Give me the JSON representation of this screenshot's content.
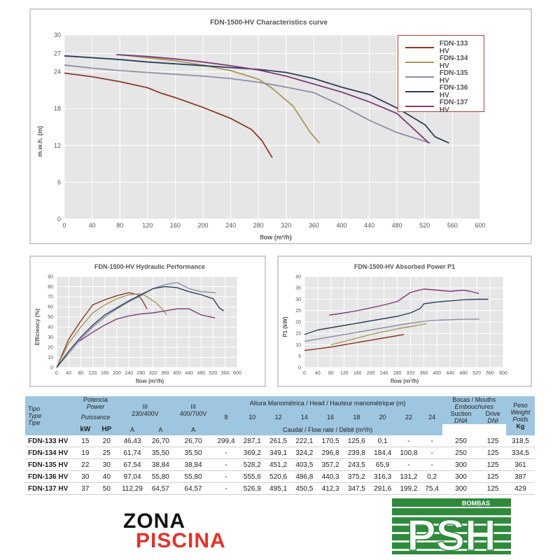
{
  "main_chart": {
    "title": "FDN-1500-HV Characteristics curve",
    "ylabel": "m.w.h. (m)",
    "xlabel": "flow (m³/h)",
    "x_ticks": [
      "0",
      "40",
      "80",
      "120",
      "160",
      "200",
      "240",
      "280",
      "320",
      "360",
      "400",
      "440",
      "480",
      "520",
      "560",
      "600"
    ],
    "y_ticks": [
      "0",
      "6",
      "12",
      "18",
      "24",
      "27",
      "30"
    ]
  },
  "legend": [
    "FDN-133 HV",
    "FDN-134 HV",
    "FDN-135 HV",
    "FDN-136 HV",
    "FDN-137 HV"
  ],
  "colors": {
    "FDN-133 HV": "#8a3a2a",
    "FDN-134 HV": "#a8975a",
    "FDN-135 HV": "#8c8ea6",
    "FDN-136 HV": "#2c3e5c",
    "FDN-137 HV": "#7e3b78"
  },
  "hydraulic_chart": {
    "title": "FDN-1500-HV Hydraulic Performance",
    "ylabel": "Efficiency (%)",
    "xlabel": "flow (m³/h)",
    "x_ticks": [
      "0",
      "40",
      "80",
      "120",
      "160",
      "200",
      "240",
      "280",
      "320",
      "360",
      "400",
      "440",
      "480",
      "520",
      "560",
      "600"
    ],
    "y_ticks": [
      "0",
      "10",
      "20",
      "30",
      "40",
      "50",
      "60",
      "70",
      "80",
      "90"
    ]
  },
  "power_chart": {
    "title": "FDN-1500-HV Absorbed Power P1",
    "ylabel": "P1 (kW)",
    "xlabel": "flow (m³/h)",
    "x_ticks": [
      "0",
      "40",
      "80",
      "120",
      "160",
      "200",
      "240",
      "280",
      "320",
      "360",
      "400",
      "440",
      "480",
      "520",
      "560",
      "600"
    ],
    "y_ticks": [
      "0",
      "5",
      "10",
      "15",
      "20",
      "25",
      "30",
      "35",
      "40"
    ]
  },
  "chart_data": [
    {
      "type": "line",
      "title": "FDN-1500-HV Characteristics curve",
      "xlabel": "flow (m³/h)",
      "ylabel": "m.w.h. (m)",
      "xlim": [
        0,
        600
      ],
      "ylim": [
        0,
        30
      ],
      "y_ticks": [
        0,
        6,
        12,
        18,
        24,
        27,
        30
      ],
      "grid": true,
      "legend": "top-right",
      "series": [
        {
          "name": "FDN-133 HV",
          "x": [
            0,
            40,
            80,
            120,
            140,
            160,
            200,
            240,
            270,
            285,
            293,
            300
          ],
          "y": [
            23.8,
            23.2,
            22.4,
            21.4,
            20.5,
            19.8,
            18.2,
            16.4,
            14.6,
            12.8,
            11.3,
            10
          ]
        },
        {
          "name": "FDN-134 HV",
          "x": [
            80,
            120,
            160,
            200,
            240,
            280,
            300,
            330,
            355,
            368
          ],
          "y": [
            26.8,
            26.3,
            25.8,
            25.1,
            24.2,
            22.8,
            21.3,
            18.4,
            14.1,
            12.4
          ]
        },
        {
          "name": "FDN-135 HV",
          "x": [
            0,
            40,
            80,
            120,
            160,
            200,
            240,
            280,
            320,
            360,
            400,
            440,
            480,
            528
          ],
          "y": [
            25.1,
            24.6,
            24.2,
            23.9,
            23.6,
            23.3,
            22.9,
            22.3,
            21.5,
            20.6,
            18.5,
            16.1,
            14.1,
            12.4
          ]
        },
        {
          "name": "FDN-136 HV",
          "x": [
            0,
            40,
            80,
            120,
            160,
            200,
            240,
            280,
            320,
            360,
            400,
            440,
            480,
            520,
            535,
            555
          ],
          "y": [
            26.6,
            26.3,
            26,
            25.6,
            25.3,
            25,
            24.7,
            24.4,
            23.9,
            22.9,
            21.5,
            20.3,
            18.1,
            15.4,
            13.4,
            12.4
          ]
        },
        {
          "name": "FDN-137 HV",
          "x": [
            75,
            120,
            160,
            200,
            240,
            280,
            320,
            360,
            400,
            440,
            480,
            526
          ],
          "y": [
            26.8,
            26.5,
            26.1,
            25.6,
            25,
            24.3,
            23.3,
            22,
            20.7,
            19.1,
            17.2,
            12.4
          ]
        }
      ]
    },
    {
      "type": "line",
      "title": "FDN-1500-HV Hydraulic Performance",
      "xlabel": "flow (m³/h)",
      "ylabel": "Efficiency (%)",
      "xlim": [
        0,
        600
      ],
      "ylim": [
        0,
        90
      ],
      "grid": true,
      "series": [
        {
          "name": "FDN-133 HV",
          "x": [
            0,
            40,
            80,
            120,
            160,
            200,
            240,
            270,
            285,
            300
          ],
          "y": [
            0,
            28,
            46,
            62,
            67,
            71,
            74,
            72,
            66,
            58
          ]
        },
        {
          "name": "FDN-134 HV",
          "x": [
            0,
            40,
            80,
            120,
            160,
            200,
            240,
            280,
            300,
            330,
            350,
            365
          ],
          "y": [
            0,
            24,
            40,
            54,
            62,
            68,
            72,
            73,
            70,
            64,
            58,
            52
          ]
        },
        {
          "name": "FDN-135 HV",
          "x": [
            0,
            40,
            80,
            120,
            160,
            200,
            240,
            280,
            320,
            360,
            400,
            440,
            480,
            528
          ],
          "y": [
            0,
            14,
            28,
            40,
            50,
            58,
            65,
            71,
            78,
            82,
            84,
            78,
            75,
            74
          ]
        },
        {
          "name": "FDN-136 HV",
          "x": [
            0,
            40,
            80,
            120,
            160,
            200,
            240,
            280,
            320,
            360,
            400,
            440,
            480,
            520,
            540,
            555
          ],
          "y": [
            0,
            16,
            30,
            42,
            52,
            59,
            66,
            72,
            78,
            80,
            79,
            75,
            72,
            68,
            59,
            56
          ]
        },
        {
          "name": "FDN-137 HV",
          "x": [
            75,
            120,
            160,
            200,
            240,
            280,
            320,
            360,
            400,
            440,
            480,
            526
          ],
          "y": [
            26,
            35,
            42,
            48,
            51,
            53,
            54,
            56,
            58,
            58,
            52,
            49
          ]
        }
      ]
    },
    {
      "type": "line",
      "title": "FDN-1500-HV Absorbed Power P1",
      "xlabel": "flow (m³/h)",
      "ylabel": "P1 (kW)",
      "xlim": [
        0,
        600
      ],
      "ylim": [
        0,
        40
      ],
      "grid": true,
      "series": [
        {
          "name": "FDN-133 HV",
          "x": [
            0,
            40,
            80,
            120,
            160,
            200,
            240,
            280,
            300
          ],
          "y": [
            7.5,
            8.2,
            9,
            10,
            11,
            12,
            13,
            14,
            14.5
          ]
        },
        {
          "name": "FDN-134 HV",
          "x": [
            80,
            120,
            160,
            200,
            240,
            280,
            320,
            340,
            368
          ],
          "y": [
            10,
            11.5,
            13,
            14.5,
            15.8,
            17,
            18,
            18.5,
            19.3
          ]
        },
        {
          "name": "FDN-135 HV",
          "x": [
            0,
            40,
            80,
            120,
            160,
            200,
            240,
            280,
            320,
            360,
            400,
            440,
            480,
            528
          ],
          "y": [
            11.5,
            12.5,
            13.5,
            14.5,
            15.5,
            16.5,
            17.5,
            18.5,
            19.5,
            20.3,
            20.8,
            21,
            21.2,
            21.3
          ]
        },
        {
          "name": "FDN-136 HV",
          "x": [
            0,
            40,
            80,
            120,
            160,
            200,
            240,
            280,
            320,
            350,
            360,
            400,
            440,
            480,
            520,
            555
          ],
          "y": [
            14.5,
            16.5,
            17.5,
            18.5,
            19.5,
            20.5,
            21.5,
            22.5,
            24,
            26,
            28,
            28.8,
            29.3,
            29.8,
            30,
            30
          ]
        },
        {
          "name": "FDN-137 HV",
          "x": [
            75,
            120,
            160,
            200,
            240,
            280,
            320,
            360,
            400,
            440,
            480,
            500,
            526
          ],
          "y": [
            23,
            24,
            25,
            26.2,
            27.5,
            29,
            33,
            34.5,
            34,
            33.5,
            34,
            33.5,
            32.5
          ]
        }
      ]
    }
  ],
  "table": {
    "headers": {
      "tipo": [
        "Tipo",
        "Type",
        "Tipe"
      ],
      "potencia": [
        "Potencia",
        "Power",
        "Puissance"
      ],
      "kw": "kW",
      "hp": "HP",
      "iii_1": [
        "III",
        "230/400V"
      ],
      "iii_2": [
        "III",
        "400/700V"
      ],
      "amps": [
        "A",
        "A",
        "A"
      ],
      "altura": "Altura Manométrica / Head / Hauteur manométrique (m)",
      "caudal": "Caudal / Flow rate / Débit (m³/h)",
      "heads": [
        "8",
        "10",
        "12",
        "14",
        "16",
        "18",
        "20",
        "22",
        "24"
      ],
      "bocas": [
        "Bocas / Mouths",
        "Embouchures"
      ],
      "suction": [
        "Suction",
        "DNA"
      ],
      "drive": [
        "Drive",
        "DNI"
      ],
      "peso": [
        "Peso",
        "Weight",
        "Poids",
        "Kg"
      ]
    },
    "rows": [
      {
        "model": "FDN-133 HV",
        "kw": "15",
        "hp": "20",
        "a1": "46,43",
        "a2": "26,70",
        "a3": "26,70",
        "flows": [
          "299,4",
          "287,1",
          "261,5",
          "222,1",
          "170,5",
          "125,6",
          "0,1",
          "-",
          "-"
        ],
        "suction": "250",
        "drive": "125",
        "weight": "318,5"
      },
      {
        "model": "FDN-134 HV",
        "kw": "19",
        "hp": "25",
        "a1": "61,74",
        "a2": "35,50",
        "a3": "35,50",
        "flows": [
          "-",
          "369,2",
          "349,1",
          "324,2",
          "296,8",
          "239,8",
          "184,4",
          "100,8",
          "-"
        ],
        "suction": "250",
        "drive": "125",
        "weight": "334,5"
      },
      {
        "model": "FDN-135 HV",
        "kw": "22",
        "hp": "30",
        "a1": "67,54",
        "a2": "38,84",
        "a3": "38,84",
        "flows": [
          "-",
          "528,2",
          "451,2",
          "403,5",
          "357,2",
          "243,5",
          "65,9",
          "-",
          "-"
        ],
        "suction": "300",
        "drive": "125",
        "weight": "361"
      },
      {
        "model": "FDN-136 HV",
        "kw": "30",
        "hp": "40",
        "a1": "97,04",
        "a2": "55,80",
        "a3": "55,80",
        "flows": [
          "-",
          "555,6",
          "520,6",
          "486,8",
          "440,3",
          "375,2",
          "316,3",
          "131,2",
          "0,2"
        ],
        "suction": "300",
        "drive": "125",
        "weight": "387"
      },
      {
        "model": "FDN-137 HV",
        "kw": "37",
        "hp": "50",
        "a1": "112,29",
        "a2": "64,57",
        "a3": "64,57",
        "flows": [
          "-",
          "526,9",
          "495,1",
          "450,5",
          "412,3",
          "347,5",
          "291,6",
          "199,2",
          "75,4"
        ],
        "suction": "300",
        "drive": "125",
        "weight": "429"
      }
    ]
  },
  "logos": {
    "zona_line1": "ZONA",
    "zona_line2": "PISCINA",
    "psh_top": "BOMBAS",
    "psh_main": "PSH"
  }
}
